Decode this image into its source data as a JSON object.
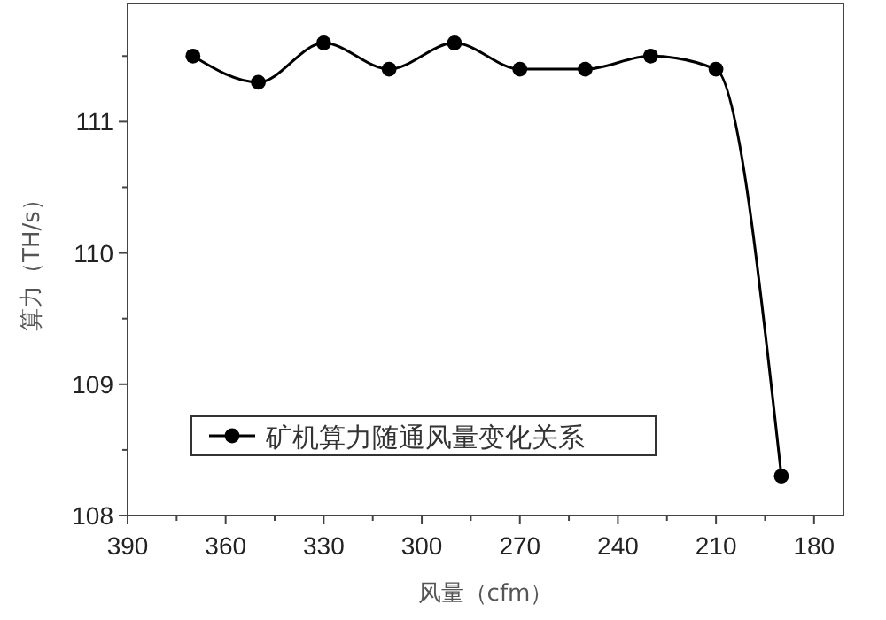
{
  "chart_data": {
    "type": "line",
    "xlabel": "风量（cfm）",
    "ylabel": "算力（TH/s）",
    "x": [
      370,
      350,
      330,
      310,
      290,
      270,
      250,
      230,
      210,
      190
    ],
    "series": [
      {
        "name": "矿机算力随通风量变化关系",
        "color": "#000000",
        "values": [
          111.5,
          111.3,
          111.6,
          111.4,
          111.6,
          111.4,
          111.4,
          111.5,
          111.4,
          108.3
        ]
      }
    ],
    "xlim": [
      390,
      171
    ],
    "xticks": [
      390,
      {
        "value": 375,
        "label": null
      },
      360,
      {
        "value": 345,
        "label": null
      },
      330,
      {
        "value": 315,
        "label": null
      },
      300,
      {
        "value": 285,
        "label": null
      },
      270,
      {
        "value": 255,
        "label": null
      },
      240,
      {
        "value": 225,
        "label": null
      },
      210,
      {
        "value": 195,
        "label": null
      },
      180
    ],
    "ylim": [
      108,
      111.9
    ],
    "yticks": [
      108,
      {
        "value": 108.5,
        "label": null
      },
      109,
      {
        "value": 109.5,
        "label": null
      },
      110,
      {
        "value": 110.5,
        "label": null
      },
      111,
      {
        "value": 111.5,
        "label": null
      }
    ],
    "grid": false,
    "legend": "bottom left",
    "marker": "circle",
    "line_style": "solid"
  }
}
